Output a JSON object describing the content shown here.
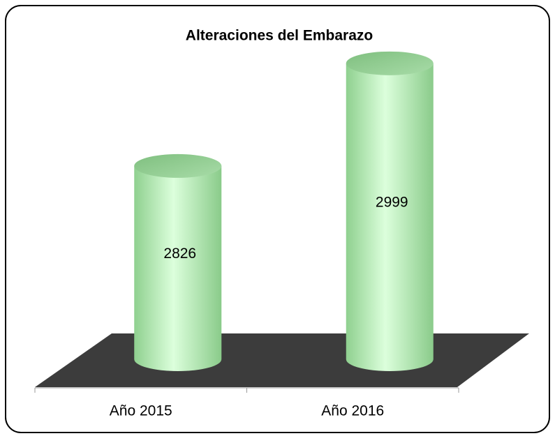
{
  "chart_data": {
    "type": "cylinder",
    "title": "Alteraciones del Embarazo",
    "categories": [
      "Año 2015",
      "Año 2016"
    ],
    "values": [
      2826,
      2999
    ],
    "color": "#b8f0b8",
    "ylim": [
      2500,
      3000
    ]
  }
}
